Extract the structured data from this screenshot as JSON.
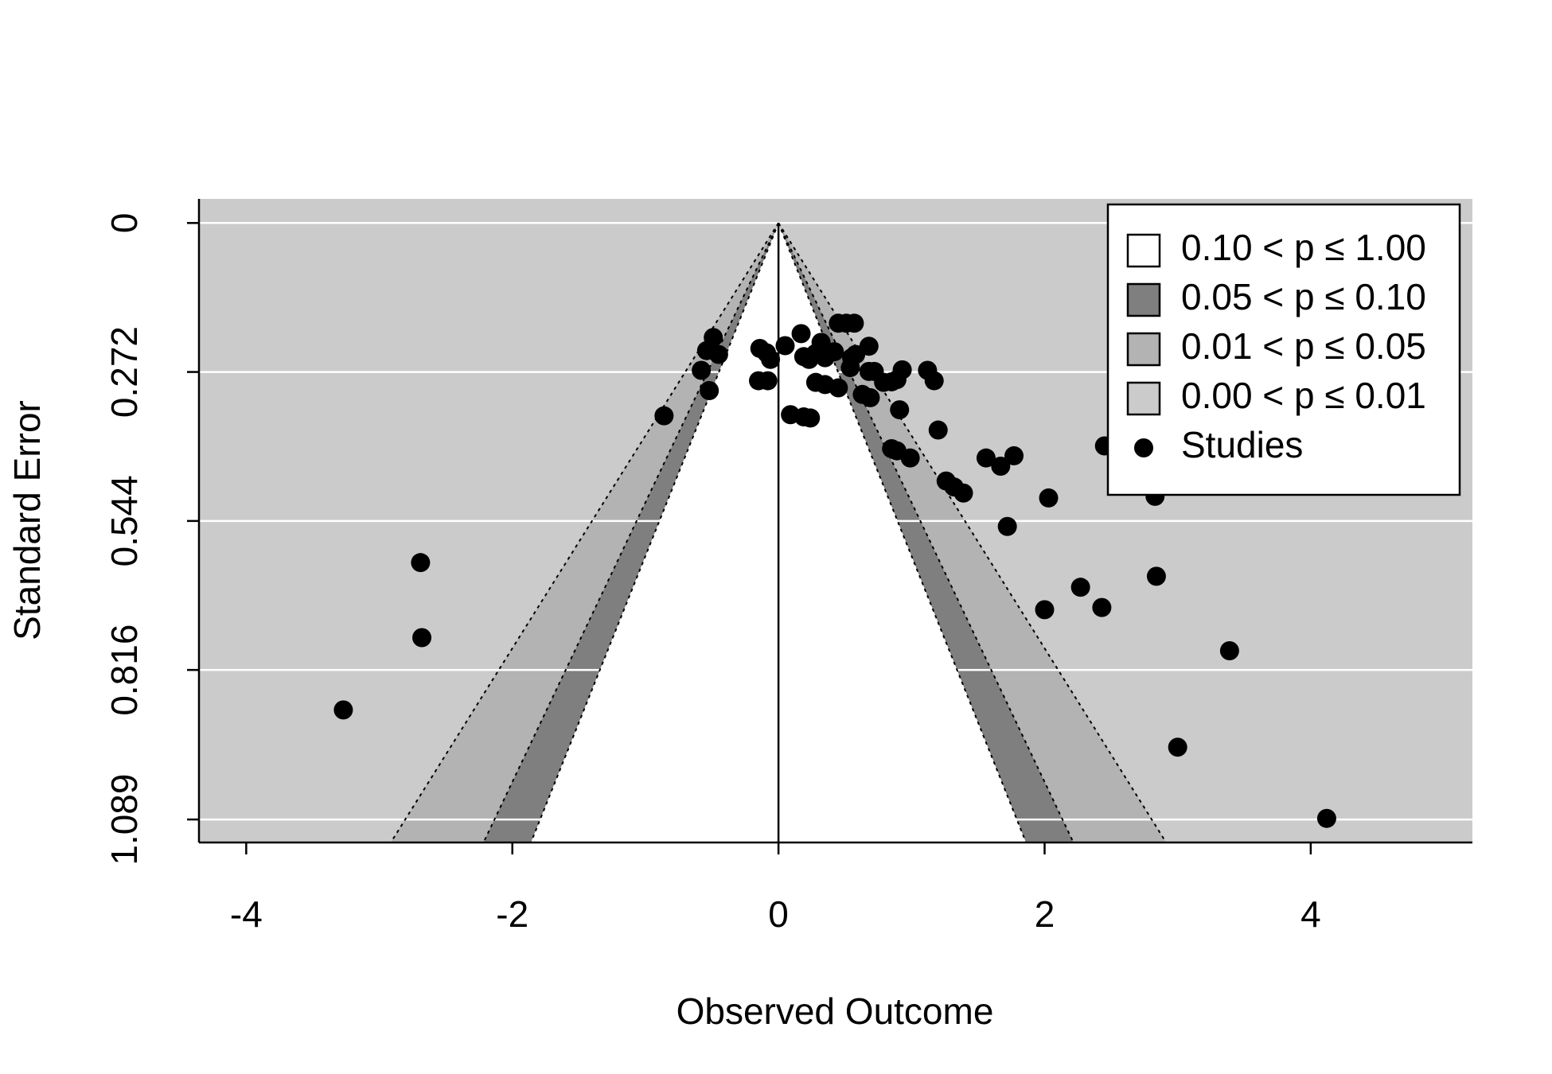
{
  "chart_data": {
    "type": "funnel",
    "xlabel": "Observed Outcome",
    "ylabel": "Standard Error",
    "xlim": [
      -4.355,
      5.215
    ],
    "ylim": [
      -0.044,
      1.131
    ],
    "y_inverted": true,
    "xticks": [
      -4,
      -2,
      0,
      2,
      4
    ],
    "yticks": [
      0,
      0.272,
      0.544,
      0.816,
      1.089
    ],
    "grid": true,
    "grid_color": "#ffffff",
    "reference_line": 0,
    "legend_position": "top-right",
    "contours": [
      {
        "name": "0.10 < p ≤ 1.00",
        "color": "#ffffff",
        "p_lower": 0.1
      },
      {
        "name": "0.05 < p ≤ 0.10",
        "color": "#7f7f7f",
        "p_lower": 0.05
      },
      {
        "name": "0.01 < p ≤ 0.05",
        "color": "#b3b3b3",
        "p_lower": 0.01
      },
      {
        "name": "0.00 < p ≤ 0.01",
        "color": "#cbcbcb",
        "p_lower": 0.0
      }
    ],
    "series": [
      {
        "name": "Studies",
        "color": "#000000",
        "x": [
          -0.49,
          -0.54,
          -0.45,
          -0.58,
          -0.52,
          -0.86,
          -0.14,
          -0.09,
          -0.06,
          -0.15,
          -0.08,
          0.05,
          0.17,
          0.19,
          0.23,
          0.28,
          0.32,
          0.35,
          0.42,
          0.45,
          0.51,
          0.57,
          0.55,
          0.58,
          0.68,
          0.54,
          0.68,
          0.63,
          0.69,
          0.72,
          0.79,
          0.85,
          0.93,
          0.89,
          0.28,
          0.35,
          0.45,
          0.09,
          0.19,
          0.24,
          0.91,
          1.12,
          1.17,
          1.2,
          0.85,
          0.89,
          0.99,
          1.56,
          1.67,
          1.77,
          1.26,
          1.32,
          1.39,
          1.72,
          2.03,
          2.45,
          2.83,
          2.84,
          2.0,
          2.27,
          2.43,
          3.39,
          3.0,
          4.12,
          -2.69,
          -2.68,
          -3.27
        ],
        "y": [
          0.209,
          0.233,
          0.24,
          0.269,
          0.306,
          0.352,
          0.229,
          0.237,
          0.249,
          0.288,
          0.288,
          0.224,
          0.202,
          0.244,
          0.249,
          0.238,
          0.218,
          0.246,
          0.235,
          0.183,
          0.183,
          0.183,
          0.246,
          0.24,
          0.225,
          0.264,
          0.271,
          0.313,
          0.319,
          0.271,
          0.291,
          0.29,
          0.268,
          0.286,
          0.291,
          0.295,
          0.301,
          0.35,
          0.354,
          0.356,
          0.341,
          0.269,
          0.288,
          0.378,
          0.412,
          0.416,
          0.429,
          0.429,
          0.444,
          0.425,
          0.471,
          0.482,
          0.493,
          0.554,
          0.502,
          0.407,
          0.499,
          0.645,
          0.706,
          0.665,
          0.702,
          0.781,
          0.957,
          1.087,
          0.62,
          0.757,
          0.889
        ]
      }
    ]
  }
}
